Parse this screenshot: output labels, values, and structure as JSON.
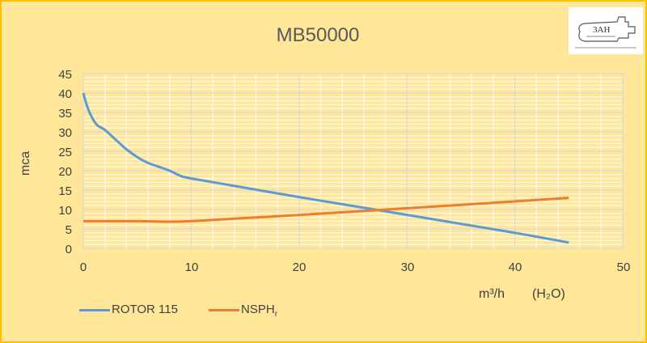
{
  "chart_data": {
    "type": "line",
    "title": "MB50000",
    "xlabel": "m³/h    (H₂O)",
    "ylabel": "mca",
    "xlim": [
      0,
      50
    ],
    "ylim": [
      0,
      45
    ],
    "x_ticks": [
      0,
      10,
      20,
      30,
      40,
      50
    ],
    "y_ticks": [
      0,
      5,
      10,
      15,
      20,
      25,
      30,
      35,
      40,
      45
    ],
    "grid": {
      "major_x": 10,
      "minor_x": 2,
      "major_y": 5,
      "minor_y": 1
    },
    "legend_position": "bottom-left",
    "series": [
      {
        "name": "ROTOR 115",
        "color": "#5b9bd5",
        "x": [
          0,
          0.5,
          1.2,
          2,
          3,
          4,
          5,
          6,
          7,
          8,
          9,
          10,
          15,
          20,
          27,
          35,
          40,
          45
        ],
        "y": [
          40,
          35.5,
          32,
          30.5,
          28,
          25.5,
          23.5,
          22,
          21,
          20,
          18.7,
          18,
          15.6,
          13.2,
          10,
          6.3,
          4,
          1.5
        ]
      },
      {
        "name": "NSPHr",
        "color": "#ed7d31",
        "x": [
          0,
          5,
          9,
          15,
          20,
          27,
          35,
          40,
          45
        ],
        "y": [
          7,
          7,
          6.9,
          7.8,
          8.6,
          9.8,
          11.2,
          12.1,
          13
        ]
      }
    ]
  },
  "title": "MB50000",
  "logo": {
    "label": "3AH logo"
  },
  "axis": {
    "ylabel": "mca",
    "xlabel_unit": "m³/h",
    "xlabel_fluid": "(H₂O)",
    "yticks": [
      "45",
      "40",
      "35",
      "30",
      "25",
      "20",
      "15",
      "10",
      "5",
      "0"
    ],
    "xticks": [
      "0",
      "10",
      "20",
      "30",
      "40",
      "50"
    ]
  },
  "legend": {
    "items": [
      {
        "label": "ROTOR 115",
        "color": "#5b9bd5"
      },
      {
        "label": "NSPH",
        "sub": "r",
        "color": "#ed7d31"
      }
    ]
  }
}
